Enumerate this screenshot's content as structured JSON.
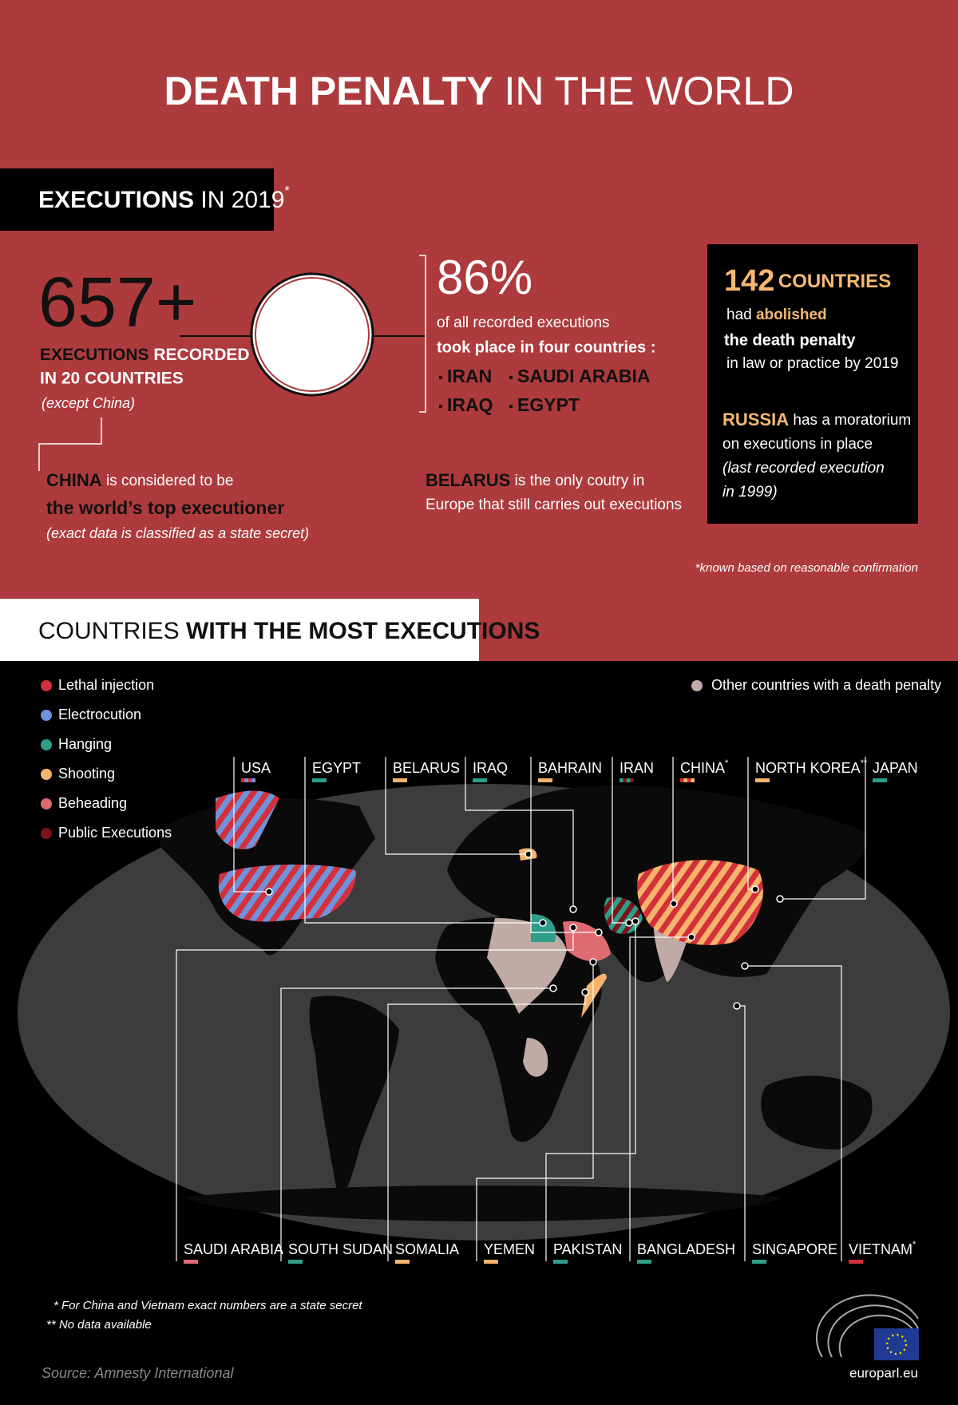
{
  "header": {
    "title_bold": "DEATH PENALTY",
    "title_light": "IN THE WORLD"
  },
  "executions": {
    "heading_bold": "EXECUTIONS",
    "heading_light": "IN 2019",
    "heading_mark": "*",
    "recorded": {
      "number": "657+",
      "line1_bold": "EXECUTIONS",
      "line1_rest": "RECORDED",
      "line2": "IN 20 COUNTRIES",
      "note": "(except China)"
    },
    "china": {
      "name": "CHINA",
      "text": "is considered to be",
      "bold": "the world’s top executioner",
      "note": "(exact data is classified as a state secret)"
    },
    "share": {
      "number": "86%",
      "line1": "of all recorded executions",
      "line2": "took place in four countries :",
      "countries": [
        "IRAN",
        "SAUDI ARABIA",
        "IRAQ",
        "EGYPT"
      ]
    },
    "belarus": {
      "name": "BELARUS",
      "line1": "is the only coutry in",
      "line2": "Europe that still carries out executions"
    },
    "abolition": {
      "number": "142",
      "unit": "COUNTRIES",
      "had": "had",
      "abolished": "abolished",
      "bold": "the death penalty",
      "rest": "in law or practice by 2019",
      "russia": "RUSSIA",
      "russia_text1": "has a moratorium",
      "russia_text2": "on executions in place",
      "note1": "(last recorded execution",
      "note2": "in 1999)"
    },
    "footnote": "*known based on reasonable confirmation"
  },
  "map": {
    "heading_light": "COUNTRIES",
    "heading_bold": "WITH THE MOST EXECUTIONS",
    "legend": [
      {
        "label": "Lethal injection",
        "color": "#d4303a"
      },
      {
        "label": "Electrocution",
        "color": "#6f92dc"
      },
      {
        "label": "Hanging",
        "color": "#2e9e8a"
      },
      {
        "label": "Shooting",
        "color": "#f5b36b"
      },
      {
        "label": "Beheading",
        "color": "#e06a72"
      },
      {
        "label": "Public Executions",
        "color": "#7a1419"
      }
    ],
    "other": {
      "label": "Other countries with a death penalty",
      "color": "#bfaaa6"
    },
    "top_labels": [
      {
        "name": "USA",
        "colors": [
          "#d4303a",
          "#6f92dc"
        ]
      },
      {
        "name": "EGYPT",
        "colors": [
          "#2e9e8a"
        ]
      },
      {
        "name": "BELARUS",
        "colors": [
          "#f5b36b"
        ]
      },
      {
        "name": "IRAQ",
        "colors": [
          "#2e9e8a"
        ]
      },
      {
        "name": "BAHRAIN",
        "colors": [
          "#f5b36b"
        ]
      },
      {
        "name": "IRAN",
        "colors": [
          "#2e9e8a",
          "#7a1419"
        ]
      },
      {
        "name": "CHINA",
        "sup": "*",
        "colors": [
          "#d4303a",
          "#f5b36b"
        ]
      },
      {
        "name": "NORTH KOREA",
        "sup": "**",
        "colors": [
          "#f5b36b"
        ]
      },
      {
        "name": "JAPAN",
        "colors": [
          "#2e9e8a"
        ]
      }
    ],
    "bottom_labels": [
      {
        "name": "SAUDI ARABIA",
        "colors": [
          "#e06a72"
        ]
      },
      {
        "name": "SOUTH SUDAN",
        "colors": [
          "#2e9e8a"
        ]
      },
      {
        "name": "SOMALIA",
        "colors": [
          "#f5b36b"
        ]
      },
      {
        "name": "YEMEN",
        "colors": [
          "#f5b36b"
        ]
      },
      {
        "name": "PAKISTAN",
        "colors": [
          "#2e9e8a"
        ]
      },
      {
        "name": "BANGLADESH",
        "colors": [
          "#2e9e8a"
        ]
      },
      {
        "name": "SINGAPORE",
        "colors": [
          "#2e9e8a"
        ]
      },
      {
        "name": "VIETNAM",
        "sup": "*",
        "colors": [
          "#d4303a"
        ]
      }
    ]
  },
  "footnotes": [
    "*  For China and Vietnam exact numbers are a state secret",
    "**  No data available"
  ],
  "source": "Source: Amnesty International",
  "site": "europarl.eu"
}
